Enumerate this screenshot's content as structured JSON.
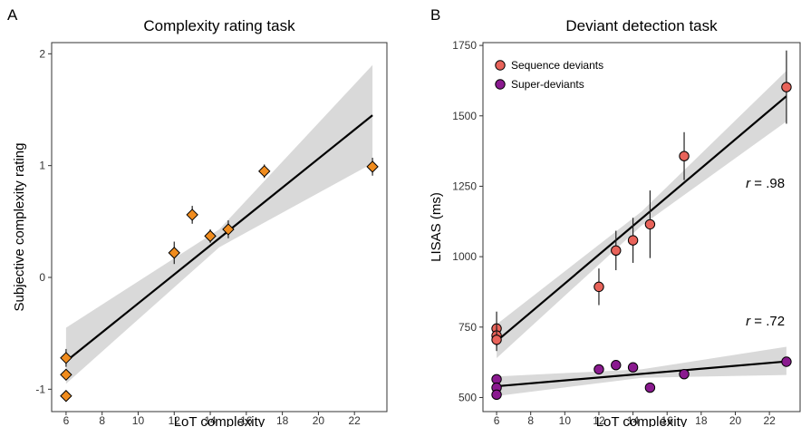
{
  "chart_data": [
    {
      "type": "scatter",
      "panel_label": "A",
      "title": "Complexity rating task",
      "xlabel": "LoT complexity",
      "ylabel": "Subjective complexity rating",
      "xlim": [
        5.2,
        23.8
      ],
      "ylim": [
        -1.2,
        2.1
      ],
      "xticks": [
        6,
        8,
        10,
        12,
        14,
        16,
        18,
        20,
        22
      ],
      "yticks": [
        -1,
        0,
        1,
        2
      ],
      "grid": false,
      "colors": {
        "marker": "#f08c1e",
        "ribbon": "#d9d9d9",
        "line": "#000000"
      },
      "series": [
        {
          "marker": "diamond",
          "points": [
            {
              "x": 6,
              "y": -0.72,
              "err": 0.08
            },
            {
              "x": 6,
              "y": -0.87,
              "err": 0.05
            },
            {
              "x": 6,
              "y": -1.06,
              "err": 0.05
            },
            {
              "x": 12,
              "y": 0.22,
              "err": 0.1
            },
            {
              "x": 13,
              "y": 0.56,
              "err": 0.08
            },
            {
              "x": 14,
              "y": 0.37,
              "err": 0.06
            },
            {
              "x": 15,
              "y": 0.43,
              "err": 0.08
            },
            {
              "x": 17,
              "y": 0.95,
              "err": 0.06
            },
            {
              "x": 23,
              "y": 0.99,
              "err": 0.08
            }
          ],
          "fit": {
            "x": [
              6,
              23
            ],
            "y": [
              -0.75,
              1.45
            ]
          },
          "ribbon": {
            "x": [
              6,
              14.5,
              23
            ],
            "lower": [
              -0.95,
              0.27,
              1.02
            ],
            "upper": [
              -0.45,
              0.43,
              1.9
            ]
          }
        }
      ],
      "annotations": []
    },
    {
      "type": "scatter",
      "panel_label": "B",
      "title": "Deviant detection task",
      "xlabel": "LoT complexity",
      "ylabel": "LISAS (ms)",
      "xlim": [
        5.2,
        23.8
      ],
      "ylim": [
        450,
        1760
      ],
      "xticks": [
        6,
        8,
        10,
        12,
        14,
        16,
        18,
        20,
        22
      ],
      "yticks": [
        500,
        750,
        1000,
        1250,
        1500,
        1750
      ],
      "grid": false,
      "legend_position": "top-left",
      "colors": {
        "ribbon": "#d9d9d9",
        "line": "#000000"
      },
      "series": [
        {
          "name": "Sequence deviants",
          "color": "#e8635a",
          "points": [
            {
              "x": 6,
              "y": 745,
              "err": 60
            },
            {
              "x": 6,
              "y": 720,
              "err": 40
            },
            {
              "x": 6,
              "y": 705,
              "err": 40
            },
            {
              "x": 12,
              "y": 893,
              "err": 65
            },
            {
              "x": 13,
              "y": 1022,
              "err": 70
            },
            {
              "x": 14,
              "y": 1058,
              "err": 80
            },
            {
              "x": 15,
              "y": 1115,
              "err": 120
            },
            {
              "x": 17,
              "y": 1357,
              "err": 85
            },
            {
              "x": 23,
              "y": 1602,
              "err": 130
            }
          ],
          "fit": {
            "x": [
              6,
              23
            ],
            "y": [
              700,
              1570
            ]
          },
          "ribbon": {
            "x": [
              6,
              14.5,
              23
            ],
            "lower": [
              640,
              1110,
              1480
            ],
            "upper": [
              760,
              1160,
              1660
            ]
          }
        },
        {
          "name": "Super-deviants",
          "color": "#8a1a8f",
          "points": [
            {
              "x": 6,
              "y": 565,
              "err": 15
            },
            {
              "x": 6,
              "y": 535,
              "err": 12
            },
            {
              "x": 6,
              "y": 510,
              "err": 12
            },
            {
              "x": 12,
              "y": 600,
              "err": 15
            },
            {
              "x": 13,
              "y": 615,
              "err": 15
            },
            {
              "x": 14,
              "y": 607,
              "err": 15
            },
            {
              "x": 15,
              "y": 535,
              "err": 10
            },
            {
              "x": 17,
              "y": 583,
              "err": 15
            },
            {
              "x": 23,
              "y": 627,
              "err": 15
            }
          ],
          "fit": {
            "x": [
              6,
              23
            ],
            "y": [
              540,
              628
            ]
          },
          "ribbon": {
            "x": [
              6,
              14.5,
              23
            ],
            "lower": [
              505,
              570,
              580
            ],
            "upper": [
              575,
              600,
              680
            ]
          }
        }
      ],
      "annotations": [
        {
          "text": "r = .98",
          "x": 22.9,
          "y": 1245
        },
        {
          "text": "r = .72",
          "x": 22.9,
          "y": 755
        }
      ]
    }
  ]
}
